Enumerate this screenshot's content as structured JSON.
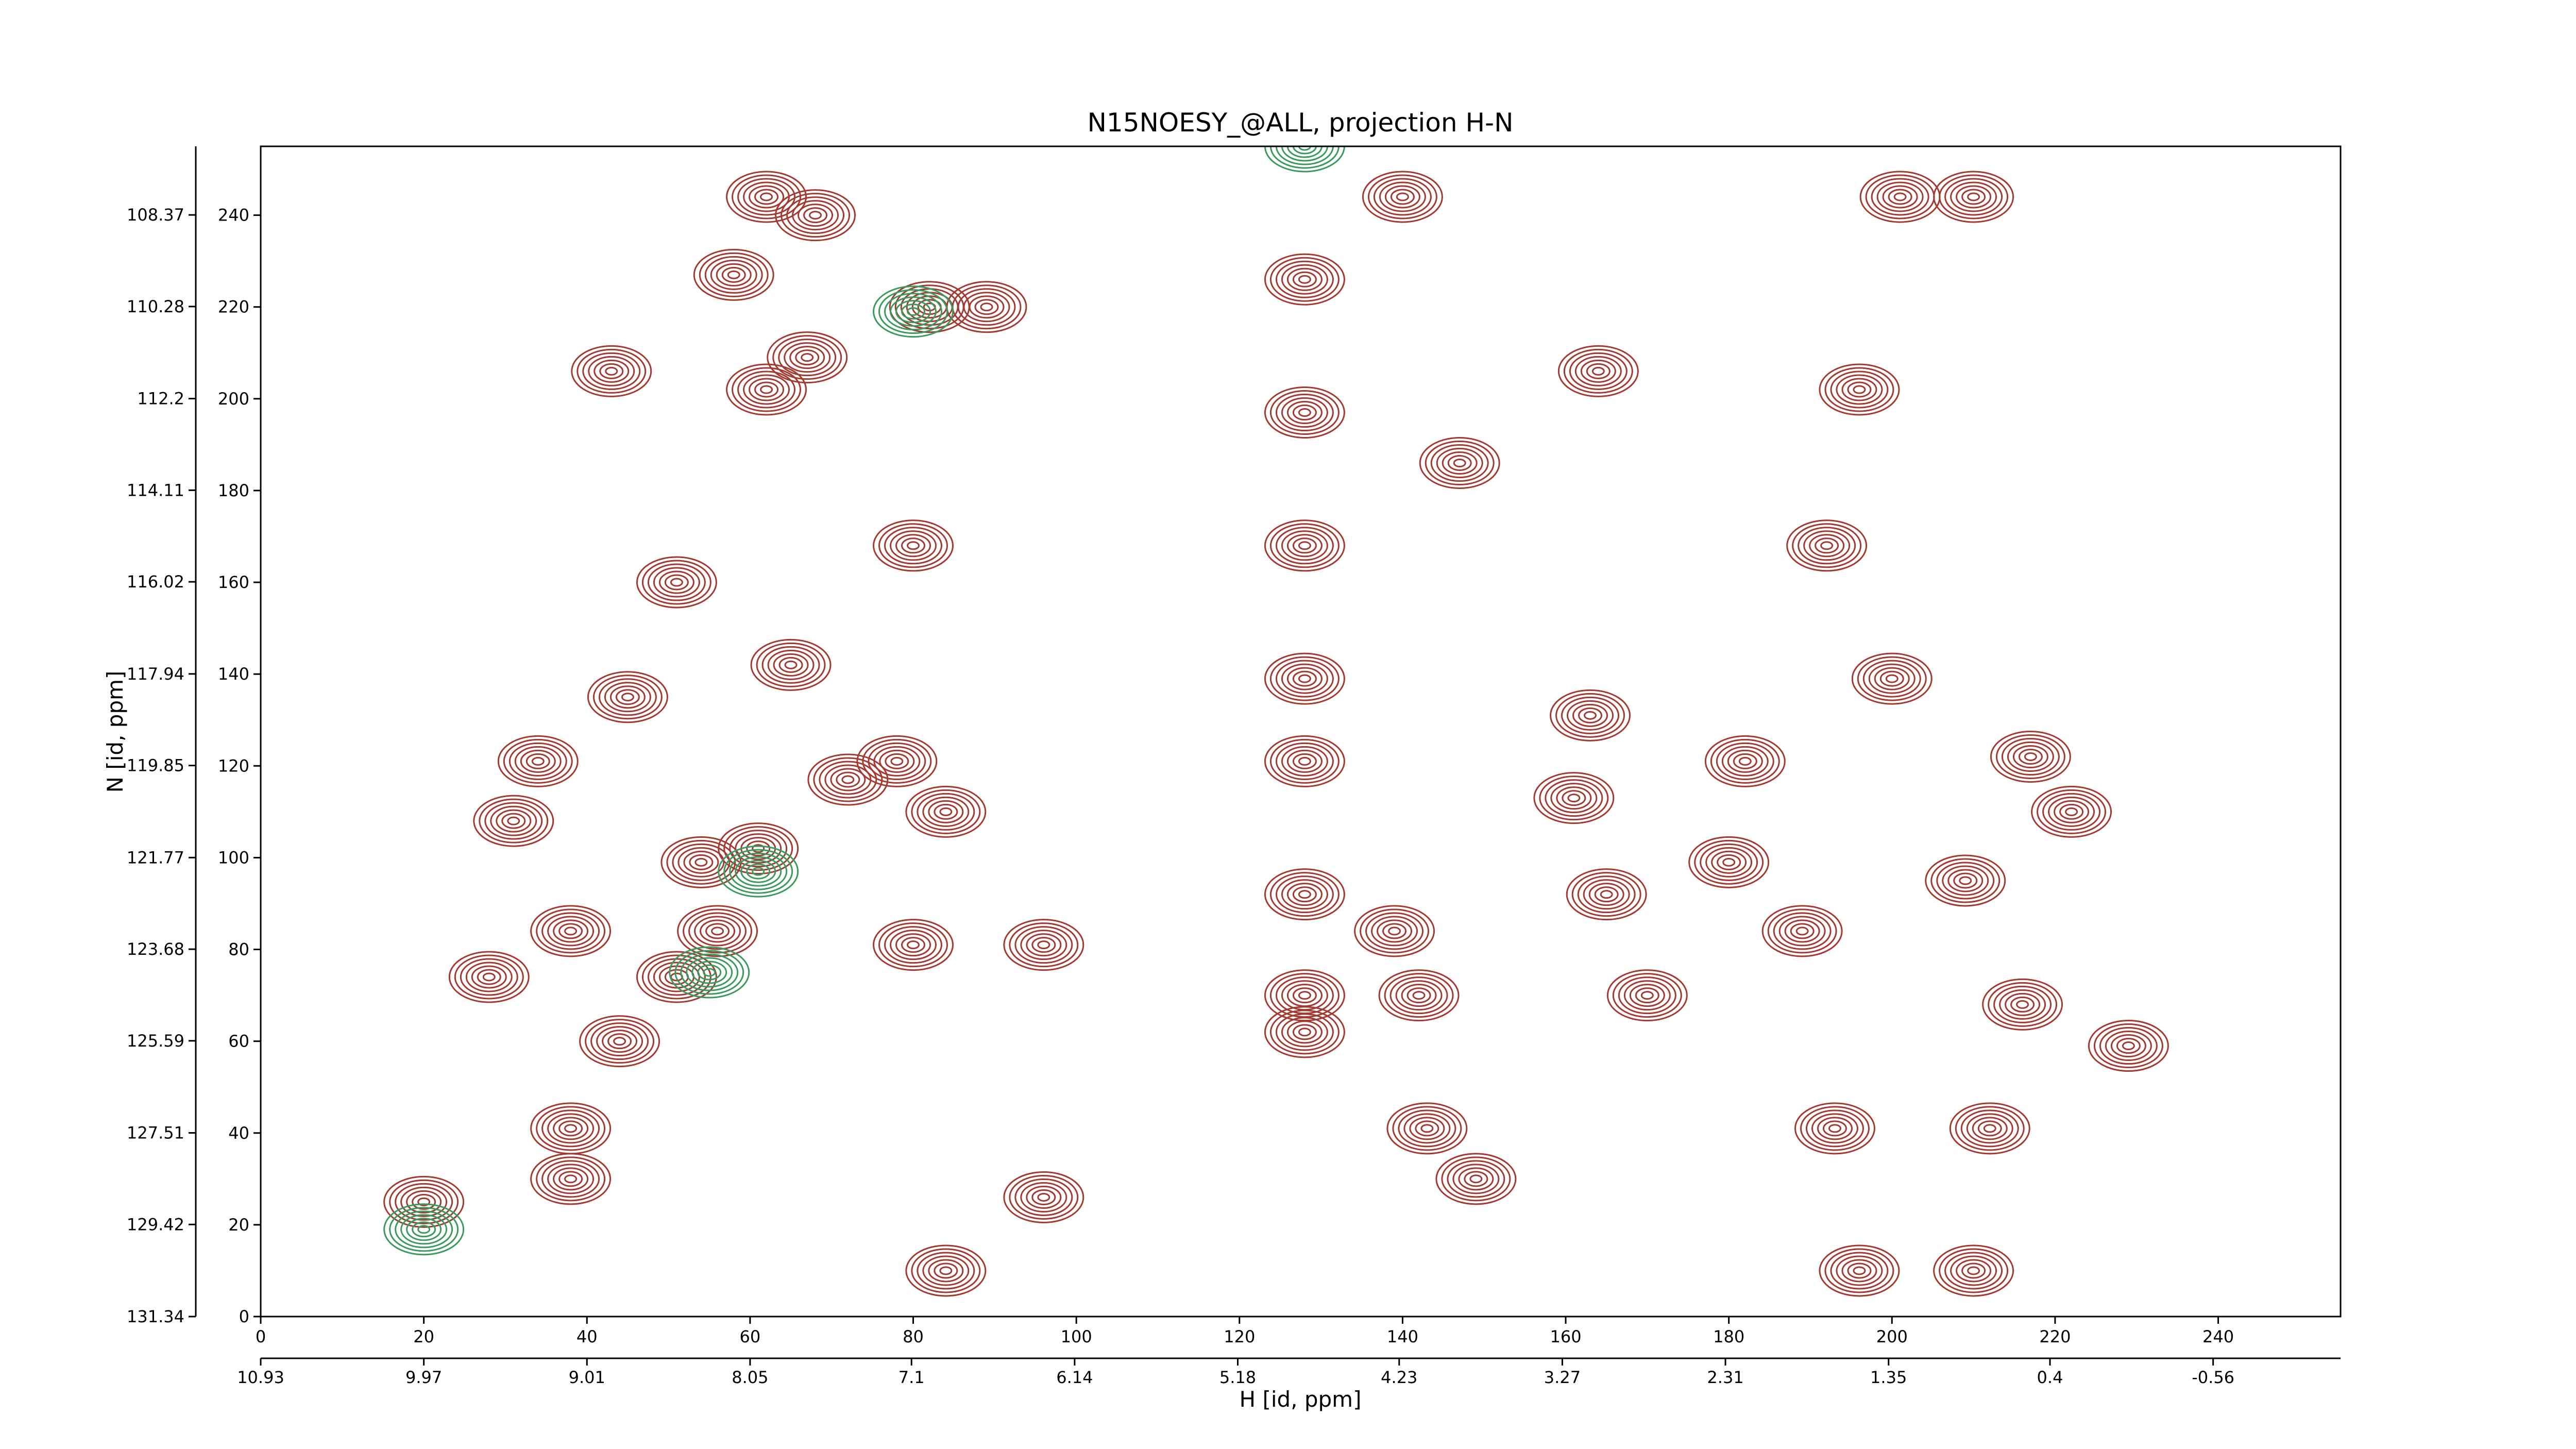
{
  "chart_data": {
    "type": "contour",
    "title": "N15NOESY_@ALL, projection H-N",
    "xlabel": "H [id, ppm]",
    "ylabel": "N [id, ppm]",
    "xlim": [
      0,
      255
    ],
    "xticks": [
      0,
      20,
      40,
      60,
      80,
      100,
      120,
      140,
      160,
      180,
      200,
      220,
      240
    ],
    "x2lim": [
      10.93,
      -1.31
    ],
    "x2ticks": [
      10.93,
      9.97,
      9.01,
      8.05,
      7.1,
      6.14,
      5.18,
      4.23,
      3.27,
      2.31,
      1.35,
      0.4,
      -0.56
    ],
    "ylim": [
      0,
      255
    ],
    "yticks": [
      0,
      20,
      40,
      60,
      80,
      100,
      120,
      140,
      160,
      180,
      200,
      220,
      240
    ],
    "y2lim": [
      131.34,
      106.94
    ],
    "y2ticks": [
      131.34,
      129.42,
      127.51,
      125.59,
      123.68,
      121.77,
      119.85,
      117.94,
      116.02,
      114.11,
      112.2,
      110.28,
      108.37
    ],
    "series": [
      {
        "color": "#a23a32",
        "x": [
          20,
          28,
          31,
          34,
          38,
          38,
          38,
          44,
          45,
          51,
          56,
          61,
          54,
          65,
          67,
          68,
          62,
          58,
          72,
          78,
          80,
          82,
          89,
          84,
          80,
          84,
          96,
          96,
          62,
          43,
          51,
          128,
          128,
          128,
          128,
          128,
          128,
          128,
          128,
          140,
          139,
          142,
          143,
          149,
          147,
          164,
          163,
          165,
          170,
          182,
          189,
          192,
          196,
          200,
          193,
          196,
          201,
          210,
          209,
          210,
          217,
          216,
          229,
          212,
          222,
          161,
          180
        ],
        "values": [
          25,
          74,
          108,
          121,
          84,
          41,
          30,
          60,
          135,
          74,
          84,
          102,
          99,
          142,
          209,
          240,
          244,
          227,
          117,
          121,
          168,
          220,
          220,
          110,
          81,
          10,
          26,
          81,
          202,
          206,
          160,
          226,
          197,
          168,
          139,
          121,
          92,
          70,
          62,
          244,
          84,
          70,
          41,
          30,
          186,
          206,
          131,
          92,
          70,
          121,
          84,
          168,
          202,
          139,
          41,
          10,
          244,
          244,
          95,
          10,
          122,
          68,
          59,
          41,
          110,
          113,
          99
        ]
      },
      {
        "color": "#3a9a5c",
        "x": [
          55,
          61,
          80,
          20,
          128
        ],
        "values": [
          75,
          97,
          219,
          19,
          255
        ]
      }
    ]
  }
}
